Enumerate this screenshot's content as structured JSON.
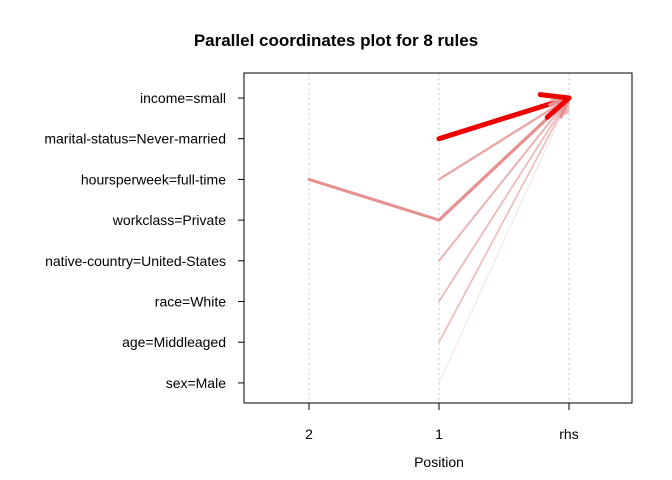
{
  "chart_data": {
    "type": "line",
    "title": "Parallel coordinates plot for 8 rules",
    "xlabel": "Position",
    "ylabel": "",
    "x_categories": [
      "2",
      "1",
      "rhs"
    ],
    "y_categories": [
      "income=small",
      "marital-status=Never-married",
      "hoursperweek=full-time",
      "workclass=Private",
      "native-country=United-States",
      "race=White",
      "age=Middleaged",
      "sex=Male"
    ],
    "grid": true,
    "series": [
      {
        "path": [
          null,
          "sex=Male",
          "income=small"
        ],
        "color": "#f3e1e1",
        "width": 1
      },
      {
        "path": [
          null,
          "age=Middleaged",
          "income=small"
        ],
        "color": "#eeb9b9",
        "width": 1.6
      },
      {
        "path": [
          null,
          "race=White",
          "income=small"
        ],
        "color": "#eeb9b9",
        "width": 1.8
      },
      {
        "path": [
          null,
          "native-country=United-States",
          "income=small"
        ],
        "color": "#ecb3b3",
        "width": 2
      },
      {
        "path": [
          null,
          "hoursperweek=full-time",
          "income=small"
        ],
        "color": "#e8a8a8",
        "width": 2.4
      },
      {
        "path": [
          null,
          "workclass=Private",
          "income=small"
        ],
        "color": "#e58a8a",
        "width": 3
      },
      {
        "path": [
          "hoursperweek=full-time",
          "workclass=Private",
          "income=small"
        ],
        "color": "#e88f8f",
        "width": 3
      },
      {
        "path": [
          null,
          "marital-status=Never-married",
          "income=small"
        ],
        "color": "#ee0000",
        "width": 5
      }
    ]
  }
}
